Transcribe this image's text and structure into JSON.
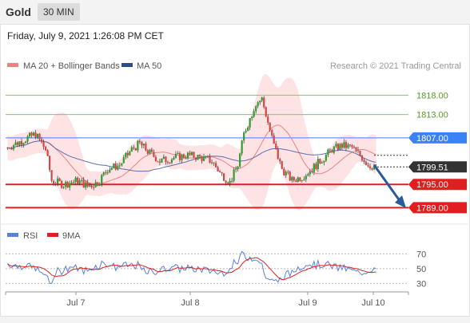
{
  "header": {
    "title": "Gold",
    "timeframe": "30 MIN"
  },
  "datetime": "Friday, July 9, 2021 1:26:08 PM CET",
  "legend": {
    "bollinger": {
      "label": "MA 20 + Bollinger Bands",
      "color": "#f08080"
    },
    "ma50": {
      "label": "MA 50",
      "color": "#2b4f8e"
    },
    "copyright": "Research © 2021 Trading Central"
  },
  "colors": {
    "up": "#2f9e2f",
    "down": "#d64545",
    "resistance": "#8dc45f",
    "support": "#e02020",
    "pivot": "#3b82f6",
    "current": "#333333",
    "forecast_arrow": "#2b5a9a",
    "band_fill": "#fde3e3",
    "rsi": "#5b7fd6",
    "rsi_ma": "#e02020"
  },
  "chart_data": [
    {
      "type": "candlestick",
      "title": "Gold 30 MIN",
      "ylim": [
        1786.0,
        1823.0
      ],
      "grid": false,
      "legend_position": "top-left",
      "x_labels": [
        "Jul 7",
        "Jul 8",
        "Jul 9",
        "Jul 10"
      ],
      "series": [
        {
          "name": "MA 20 + Bollinger Bands"
        },
        {
          "name": "MA 50"
        }
      ],
      "levels": [
        {
          "label": "1818.00",
          "value": 1818.0,
          "kind": "resistance"
        },
        {
          "label": "1813.00",
          "value": 1813.0,
          "kind": "resistance"
        },
        {
          "label": "1807.00",
          "value": 1807.0,
          "kind": "pivot"
        },
        {
          "label": "1799.51",
          "value": 1799.51,
          "kind": "current"
        },
        {
          "label": "1795.00",
          "value": 1795.0,
          "kind": "support"
        },
        {
          "label": "1789.00",
          "value": 1789.0,
          "kind": "support"
        }
      ],
      "forecast": {
        "from": 1800.0,
        "to": 1789.5,
        "direction": "down"
      }
    },
    {
      "type": "line",
      "ylim": [
        25,
        80
      ],
      "grid": false,
      "series": [
        {
          "name": "RSI"
        },
        {
          "name": "9MA"
        }
      ],
      "y_ticks": [
        "70",
        "50",
        "30"
      ]
    }
  ]
}
